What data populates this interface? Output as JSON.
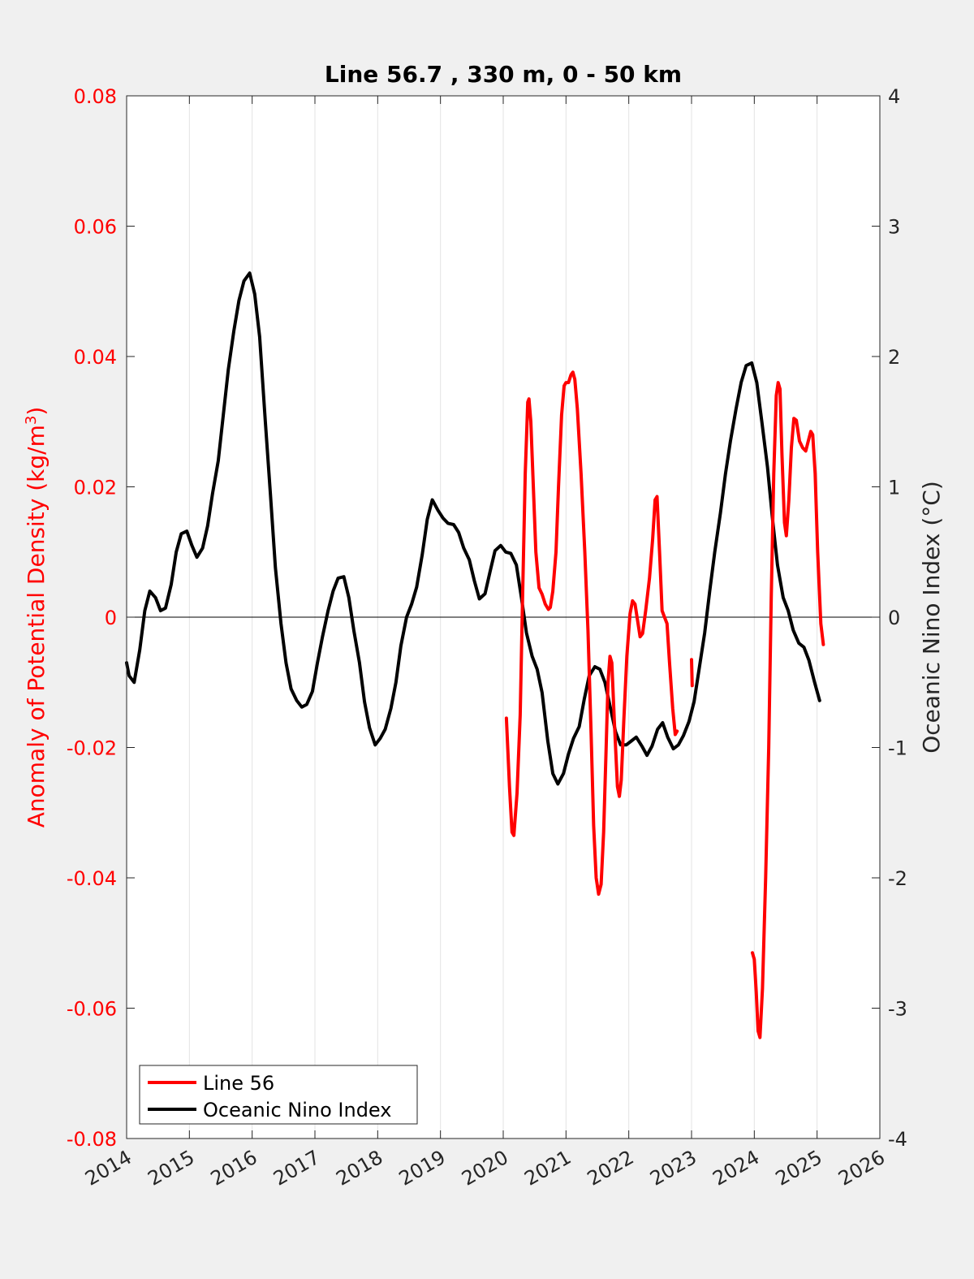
{
  "chart_data": {
    "type": "line",
    "title": "Line 56.7 , 330 m, 0 - 50 km",
    "xlim": [
      2014,
      2026
    ],
    "x_ticks": [
      "2014",
      "2015",
      "2016",
      "2017",
      "2018",
      "2019",
      "2020",
      "2021",
      "2022",
      "2023",
      "2024",
      "2025",
      "2026"
    ],
    "x_grid": true,
    "y_left": {
      "label_main": "Anomaly of Potential Density (kg/m",
      "label_sup": "3",
      "label_end": ")",
      "ylim": [
        -0.08,
        0.08
      ],
      "ticks": [
        "-0.08",
        "-0.06",
        "-0.04",
        "-0.02",
        "0",
        "0.02",
        "0.04",
        "0.06",
        "0.08"
      ],
      "color": "#ff0000"
    },
    "y_right": {
      "label": "Oceanic Nino Index (°C)",
      "ylim": [
        -4,
        4
      ],
      "ticks": [
        "-4",
        "-3",
        "-2",
        "-1",
        "0",
        "1",
        "2",
        "3",
        "4"
      ],
      "color": "#262626"
    },
    "legend_position": "bottom-left",
    "series": [
      {
        "name": "Line 56",
        "axis": "left",
        "color": "#ff0000",
        "segments": [
          [
            [
              2020.05,
              -0.0155
            ],
            [
              2020.1,
              -0.026
            ],
            [
              2020.14,
              -0.033
            ],
            [
              2020.17,
              -0.0335
            ],
            [
              2020.22,
              -0.027
            ],
            [
              2020.27,
              -0.015
            ],
            [
              2020.31,
              0.004
            ],
            [
              2020.35,
              0.022
            ],
            [
              2020.39,
              0.033
            ],
            [
              2020.41,
              0.0335
            ],
            [
              2020.44,
              0.03
            ],
            [
              2020.48,
              0.02
            ],
            [
              2020.52,
              0.01
            ],
            [
              2020.57,
              0.0045
            ],
            [
              2020.62,
              0.0035
            ],
            [
              2020.67,
              0.002
            ],
            [
              2020.72,
              0.0012
            ],
            [
              2020.75,
              0.0015
            ],
            [
              2020.79,
              0.004
            ],
            [
              2020.84,
              0.01
            ],
            [
              2020.88,
              0.02
            ],
            [
              2020.93,
              0.031
            ],
            [
              2020.97,
              0.0355
            ],
            [
              2021.0,
              0.036
            ],
            [
              2021.04,
              0.036
            ],
            [
              2021.08,
              0.0372
            ],
            [
              2021.11,
              0.0376
            ],
            [
              2021.14,
              0.0365
            ],
            [
              2021.18,
              0.032
            ],
            [
              2021.24,
              0.022
            ],
            [
              2021.3,
              0.01
            ],
            [
              2021.35,
              -0.002
            ],
            [
              2021.4,
              -0.018
            ],
            [
              2021.44,
              -0.032
            ],
            [
              2021.48,
              -0.04
            ],
            [
              2021.52,
              -0.0425
            ],
            [
              2021.56,
              -0.041
            ],
            [
              2021.6,
              -0.033
            ],
            [
              2021.64,
              -0.02
            ],
            [
              2021.67,
              -0.01
            ],
            [
              2021.7,
              -0.006
            ],
            [
              2021.73,
              -0.007
            ],
            [
              2021.77,
              -0.016
            ],
            [
              2021.82,
              -0.026
            ],
            [
              2021.85,
              -0.0275
            ],
            [
              2021.88,
              -0.025
            ],
            [
              2021.92,
              -0.016
            ],
            [
              2021.97,
              -0.006
            ],
            [
              2022.02,
              0.0005
            ],
            [
              2022.06,
              0.0025
            ],
            [
              2022.1,
              0.002
            ],
            [
              2022.14,
              -0.0005
            ],
            [
              2022.18,
              -0.003
            ],
            [
              2022.22,
              -0.0025
            ],
            [
              2022.27,
              0.001
            ],
            [
              2022.33,
              0.006
            ],
            [
              2022.38,
              0.012
            ],
            [
              2022.42,
              0.018
            ],
            [
              2022.45,
              0.0185
            ],
            [
              2022.49,
              0.01
            ],
            [
              2022.53,
              0.001
            ],
            [
              2022.57,
              0
            ],
            [
              2022.61,
              -0.001
            ],
            [
              2022.65,
              -0.007
            ],
            [
              2022.7,
              -0.014
            ],
            [
              2022.74,
              -0.018
            ],
            [
              2022.77,
              -0.0175
            ]
          ],
          [
            [
              2023.0,
              -0.0065
            ],
            [
              2023.01,
              -0.0105
            ]
          ],
          [
            [
              2023.97,
              -0.0515
            ],
            [
              2024.0,
              -0.0525
            ],
            [
              2024.03,
              -0.0575
            ],
            [
              2024.06,
              -0.0635
            ],
            [
              2024.09,
              -0.0645
            ],
            [
              2024.13,
              -0.057
            ],
            [
              2024.18,
              -0.04
            ],
            [
              2024.23,
              -0.02
            ],
            [
              2024.27,
              0.003
            ],
            [
              2024.31,
              0.022
            ],
            [
              2024.35,
              0.034
            ],
            [
              2024.38,
              0.036
            ],
            [
              2024.41,
              0.035
            ],
            [
              2024.44,
              0.025
            ],
            [
              2024.48,
              0.0145
            ],
            [
              2024.51,
              0.0125
            ],
            [
              2024.55,
              0.018
            ],
            [
              2024.59,
              0.026
            ],
            [
              2024.63,
              0.0305
            ],
            [
              2024.67,
              0.0302
            ],
            [
              2024.72,
              0.027
            ],
            [
              2024.77,
              0.026
            ],
            [
              2024.82,
              0.0255
            ],
            [
              2024.86,
              0.027
            ],
            [
              2024.9,
              0.0285
            ],
            [
              2024.93,
              0.028
            ],
            [
              2024.97,
              0.022
            ],
            [
              2025.01,
              0.01
            ],
            [
              2025.06,
              -0.001
            ],
            [
              2025.1,
              -0.0042
            ]
          ]
        ]
      },
      {
        "name": "Oceanic Nino Index",
        "axis": "right",
        "color": "#000000",
        "segments": [
          [
            [
              2014.0,
              -0.35
            ],
            [
              2014.04,
              -0.45
            ],
            [
              2014.12,
              -0.5
            ],
            [
              2014.21,
              -0.25
            ],
            [
              2014.29,
              0.05
            ],
            [
              2014.37,
              0.2
            ],
            [
              2014.46,
              0.15
            ],
            [
              2014.54,
              0.05
            ],
            [
              2014.62,
              0.07
            ],
            [
              2014.71,
              0.25
            ],
            [
              2014.79,
              0.5
            ],
            [
              2014.87,
              0.64
            ],
            [
              2014.96,
              0.66
            ],
            [
              2015.04,
              0.55
            ],
            [
              2015.12,
              0.46
            ],
            [
              2015.21,
              0.53
            ],
            [
              2015.29,
              0.7
            ],
            [
              2015.37,
              0.95
            ],
            [
              2015.46,
              1.2
            ],
            [
              2015.54,
              1.55
            ],
            [
              2015.62,
              1.9
            ],
            [
              2015.71,
              2.2
            ],
            [
              2015.79,
              2.43
            ],
            [
              2015.87,
              2.58
            ],
            [
              2015.96,
              2.64
            ],
            [
              2016.04,
              2.48
            ],
            [
              2016.12,
              2.15
            ],
            [
              2016.21,
              1.5
            ],
            [
              2016.29,
              0.95
            ],
            [
              2016.37,
              0.38
            ],
            [
              2016.46,
              -0.05
            ],
            [
              2016.54,
              -0.35
            ],
            [
              2016.62,
              -0.55
            ],
            [
              2016.71,
              -0.64
            ],
            [
              2016.79,
              -0.69
            ],
            [
              2016.87,
              -0.67
            ],
            [
              2016.96,
              -0.57
            ],
            [
              2017.04,
              -0.35
            ],
            [
              2017.12,
              -0.15
            ],
            [
              2017.21,
              0.05
            ],
            [
              2017.29,
              0.2
            ],
            [
              2017.37,
              0.3
            ],
            [
              2017.46,
              0.31
            ],
            [
              2017.54,
              0.15
            ],
            [
              2017.62,
              -0.1
            ],
            [
              2017.71,
              -0.35
            ],
            [
              2017.79,
              -0.65
            ],
            [
              2017.87,
              -0.85
            ],
            [
              2017.96,
              -0.98
            ],
            [
              2018.04,
              -0.93
            ],
            [
              2018.12,
              -0.86
            ],
            [
              2018.21,
              -0.7
            ],
            [
              2018.29,
              -0.5
            ],
            [
              2018.37,
              -0.22
            ],
            [
              2018.46,
              0
            ],
            [
              2018.54,
              0.1
            ],
            [
              2018.62,
              0.23
            ],
            [
              2018.71,
              0.48
            ],
            [
              2018.79,
              0.75
            ],
            [
              2018.87,
              0.9
            ],
            [
              2018.96,
              0.82
            ],
            [
              2019.04,
              0.76
            ],
            [
              2019.12,
              0.72
            ],
            [
              2019.21,
              0.71
            ],
            [
              2019.29,
              0.65
            ],
            [
              2019.37,
              0.53
            ],
            [
              2019.46,
              0.44
            ],
            [
              2019.54,
              0.28
            ],
            [
              2019.62,
              0.14
            ],
            [
              2019.71,
              0.18
            ],
            [
              2019.79,
              0.35
            ],
            [
              2019.87,
              0.51
            ],
            [
              2019.96,
              0.55
            ],
            [
              2020.04,
              0.5
            ],
            [
              2020.12,
              0.49
            ],
            [
              2020.21,
              0.4
            ],
            [
              2020.29,
              0.15
            ],
            [
              2020.37,
              -0.12
            ],
            [
              2020.46,
              -0.3
            ],
            [
              2020.54,
              -0.4
            ],
            [
              2020.62,
              -0.58
            ],
            [
              2020.71,
              -0.95
            ],
            [
              2020.79,
              -1.2
            ],
            [
              2020.87,
              -1.28
            ],
            [
              2020.96,
              -1.2
            ],
            [
              2021.04,
              -1.05
            ],
            [
              2021.12,
              -0.93
            ],
            [
              2021.21,
              -0.84
            ],
            [
              2021.29,
              -0.63
            ],
            [
              2021.37,
              -0.45
            ],
            [
              2021.46,
              -0.38
            ],
            [
              2021.54,
              -0.4
            ],
            [
              2021.62,
              -0.5
            ],
            [
              2021.71,
              -0.7
            ],
            [
              2021.79,
              -0.88
            ],
            [
              2021.87,
              -0.98
            ],
            [
              2021.96,
              -0.98
            ],
            [
              2022.04,
              -0.95
            ],
            [
              2022.12,
              -0.92
            ],
            [
              2022.21,
              -0.99
            ],
            [
              2022.29,
              -1.06
            ],
            [
              2022.37,
              -0.99
            ],
            [
              2022.46,
              -0.86
            ],
            [
              2022.54,
              -0.81
            ],
            [
              2022.62,
              -0.92
            ],
            [
              2022.71,
              -1.01
            ],
            [
              2022.79,
              -0.98
            ],
            [
              2022.87,
              -0.91
            ],
            [
              2022.96,
              -0.8
            ],
            [
              2023.04,
              -0.65
            ],
            [
              2023.12,
              -0.4
            ],
            [
              2023.21,
              -0.12
            ],
            [
              2023.29,
              0.2
            ],
            [
              2023.37,
              0.5
            ],
            [
              2023.46,
              0.8
            ],
            [
              2023.54,
              1.1
            ],
            [
              2023.62,
              1.35
            ],
            [
              2023.71,
              1.6
            ],
            [
              2023.79,
              1.8
            ],
            [
              2023.87,
              1.93
            ],
            [
              2023.96,
              1.95
            ],
            [
              2024.04,
              1.8
            ],
            [
              2024.12,
              1.5
            ],
            [
              2024.21,
              1.15
            ],
            [
              2024.29,
              0.75
            ],
            [
              2024.37,
              0.4
            ],
            [
              2024.46,
              0.15
            ],
            [
              2024.54,
              0.05
            ],
            [
              2024.62,
              -0.1
            ],
            [
              2024.71,
              -0.2
            ],
            [
              2024.79,
              -0.23
            ],
            [
              2024.87,
              -0.33
            ],
            [
              2024.96,
              -0.5
            ],
            [
              2025.04,
              -0.64
            ]
          ]
        ]
      }
    ]
  }
}
